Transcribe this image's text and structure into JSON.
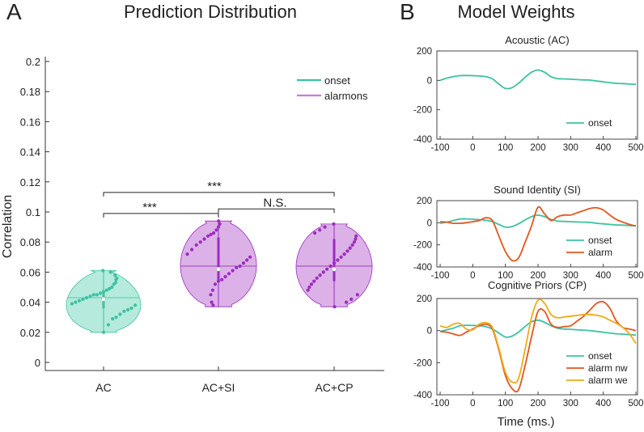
{
  "panel_a": {
    "letter": "A",
    "title": "Prediction Distribution",
    "ylabel": "Correlation",
    "y_ticks": [
      "0.2",
      "0.18",
      "0.16",
      "0.14",
      "0.12",
      "0.1",
      "0.08",
      "0.06",
      "0.04",
      "0.02",
      "0"
    ],
    "categories": [
      "AC",
      "AC+SI",
      "AC+CP"
    ],
    "legend": [
      {
        "label": "onset",
        "color": "#3cc2a0"
      },
      {
        "label": "alarmons",
        "color": "#c879dc"
      }
    ],
    "sig": [
      {
        "label": "***"
      },
      {
        "label": "***"
      },
      {
        "label": "N.S."
      }
    ]
  },
  "panel_b": {
    "letter": "B",
    "title": "Model Weights",
    "xlabel": "Time (ms.)",
    "x_ticks": [
      "-100",
      "0",
      "100",
      "200",
      "300",
      "400",
      "500"
    ],
    "y_ticks": [
      "200",
      "0",
      "-200",
      "-400"
    ],
    "subplots": [
      {
        "title": "Acoustic (AC)",
        "legend": [
          "onset"
        ]
      },
      {
        "title": "Sound Identity (SI)",
        "legend": [
          "onset",
          "alarm"
        ]
      },
      {
        "title": "Cognitive Priors (CP)",
        "legend": [
          "onset",
          "alarm nw",
          "alarm we"
        ]
      }
    ]
  },
  "chart_data": [
    {
      "type": "violin",
      "title": "Prediction Distribution",
      "xlabel": "",
      "ylabel": "Correlation",
      "ylim": [
        -0.005,
        0.205
      ],
      "categories": [
        "AC",
        "AC+SI",
        "AC+CP"
      ],
      "groups": [
        {
          "name": "AC",
          "series": "onset",
          "color": "#3cc2a0",
          "fill": "#a8e6d6",
          "median": 0.042,
          "q1": 0.036,
          "q3": 0.047,
          "min": 0.02,
          "max": 0.061,
          "points": [
            0.061,
            0.06,
            0.058,
            0.056,
            0.055,
            0.053,
            0.052,
            0.05,
            0.049,
            0.048,
            0.047,
            0.046,
            0.045,
            0.045,
            0.044,
            0.043,
            0.042,
            0.041,
            0.04,
            0.039,
            0.038,
            0.036,
            0.035,
            0.034,
            0.032,
            0.03,
            0.029,
            0.025,
            0.02
          ]
        },
        {
          "name": "AC+SI",
          "series": "alarmons",
          "color": "#9b2cc0",
          "fill": "#d6a3e3",
          "median": 0.062,
          "mean": 0.065,
          "q1": 0.054,
          "q3": 0.083,
          "min": 0.037,
          "max": 0.094,
          "points": [
            0.094,
            0.092,
            0.09,
            0.088,
            0.086,
            0.085,
            0.084,
            0.082,
            0.08,
            0.078,
            0.075,
            0.072,
            0.07,
            0.068,
            0.066,
            0.064,
            0.063,
            0.061,
            0.059,
            0.057,
            0.055,
            0.054,
            0.052,
            0.048,
            0.045,
            0.04,
            0.038
          ]
        },
        {
          "name": "AC+CP",
          "series": "alarmons",
          "color": "#9b2cc0",
          "fill": "#d6a3e3",
          "median": 0.062,
          "mean": 0.065,
          "q1": 0.054,
          "q3": 0.082,
          "min": 0.037,
          "max": 0.092,
          "points": [
            0.092,
            0.09,
            0.088,
            0.086,
            0.084,
            0.082,
            0.08,
            0.078,
            0.076,
            0.074,
            0.072,
            0.07,
            0.068,
            0.066,
            0.064,
            0.062,
            0.06,
            0.058,
            0.056,
            0.054,
            0.052,
            0.05,
            0.048,
            0.045,
            0.042,
            0.04,
            0.037
          ]
        }
      ],
      "comparisons": [
        {
          "pair": [
            "AC",
            "AC+SI"
          ],
          "label": "***",
          "y": 0.099
        },
        {
          "pair": [
            "AC",
            "AC+CP"
          ],
          "label": "***",
          "y": 0.113
        },
        {
          "pair": [
            "AC+SI",
            "AC+CP"
          ],
          "label": "N.S.",
          "y": 0.102
        }
      ],
      "legend": [
        "onset",
        "alarmons"
      ]
    },
    {
      "type": "line",
      "title": "Acoustic (AC)",
      "xlim": [
        -100,
        500
      ],
      "ylim": [
        -400,
        200
      ],
      "series": [
        {
          "name": "onset",
          "color": "#3cc2a0",
          "x": [
            -100,
            -80,
            -60,
            -40,
            -20,
            0,
            20,
            40,
            60,
            80,
            100,
            120,
            140,
            160,
            180,
            200,
            220,
            240,
            260,
            280,
            300,
            320,
            340,
            360,
            380,
            400,
            420,
            440,
            460,
            480,
            500
          ],
          "y": [
            0,
            15,
            25,
            32,
            33,
            32,
            30,
            25,
            10,
            -25,
            -55,
            -50,
            -20,
            20,
            55,
            70,
            55,
            25,
            12,
            10,
            8,
            5,
            3,
            2,
            -5,
            -10,
            -15,
            -20,
            -22,
            -25,
            -27
          ]
        }
      ]
    },
    {
      "type": "line",
      "title": "Sound Identity (SI)",
      "xlim": [
        -100,
        500
      ],
      "ylim": [
        -400,
        200
      ],
      "series": [
        {
          "name": "onset",
          "color": "#3cc2a0",
          "x": [
            -100,
            -80,
            -60,
            -40,
            -20,
            0,
            20,
            40,
            60,
            80,
            100,
            120,
            140,
            160,
            180,
            200,
            220,
            240,
            260,
            280,
            300,
            320,
            340,
            360,
            380,
            400,
            420,
            440,
            460,
            480,
            500
          ],
          "y": [
            -5,
            5,
            20,
            33,
            35,
            32,
            28,
            22,
            10,
            -15,
            -40,
            -35,
            -10,
            25,
            55,
            68,
            55,
            30,
            15,
            12,
            10,
            7,
            5,
            3,
            -5,
            -10,
            -15,
            -20,
            -22,
            -25,
            -28
          ]
        },
        {
          "name": "alarm",
          "color": "#e3561e",
          "x": [
            -100,
            -80,
            -60,
            -40,
            -20,
            0,
            20,
            40,
            60,
            80,
            100,
            120,
            140,
            160,
            180,
            200,
            220,
            240,
            260,
            280,
            300,
            320,
            340,
            360,
            380,
            400,
            420,
            440,
            460,
            480,
            500
          ],
          "y": [
            10,
            5,
            -5,
            -5,
            0,
            10,
            20,
            45,
            20,
            -120,
            -260,
            -340,
            -320,
            -180,
            -30,
            140,
            80,
            20,
            55,
            70,
            70,
            90,
            110,
            130,
            135,
            115,
            70,
            30,
            5,
            -15,
            -30
          ]
        }
      ]
    },
    {
      "type": "line",
      "title": "Cognitive Priors (CP)",
      "xlim": [
        -100,
        500
      ],
      "ylim": [
        -400,
        200
      ],
      "series": [
        {
          "name": "onset",
          "color": "#3cc2a0",
          "x": [
            -100,
            -80,
            -60,
            -40,
            -20,
            0,
            20,
            40,
            60,
            80,
            100,
            120,
            140,
            160,
            180,
            200,
            220,
            240,
            260,
            280,
            300,
            320,
            340,
            360,
            380,
            400,
            420,
            440,
            460,
            480,
            500
          ],
          "y": [
            -5,
            5,
            15,
            30,
            33,
            32,
            30,
            25,
            10,
            -15,
            -40,
            -35,
            -10,
            25,
            55,
            65,
            52,
            30,
            15,
            10,
            8,
            5,
            3,
            0,
            -5,
            -10,
            -15,
            -20,
            -22,
            -25,
            -28
          ]
        },
        {
          "name": "alarm nw",
          "color": "#e3561e",
          "x": [
            -100,
            -80,
            -60,
            -40,
            -20,
            0,
            20,
            40,
            60,
            80,
            100,
            120,
            140,
            160,
            180,
            200,
            220,
            240,
            260,
            280,
            300,
            320,
            340,
            360,
            380,
            400,
            420,
            440,
            460,
            480,
            500
          ],
          "y": [
            -5,
            -10,
            -20,
            -30,
            -10,
            10,
            30,
            40,
            10,
            -120,
            -280,
            -360,
            -370,
            -220,
            -40,
            120,
            120,
            40,
            20,
            25,
            30,
            60,
            90,
            130,
            170,
            180,
            140,
            60,
            20,
            10,
            0
          ]
        },
        {
          "name": "alarm we",
          "color": "#f0aa18",
          "x": [
            -100,
            -80,
            -60,
            -40,
            -20,
            0,
            20,
            40,
            60,
            80,
            100,
            120,
            140,
            160,
            180,
            200,
            220,
            240,
            260,
            280,
            300,
            320,
            340,
            360,
            380,
            400,
            420,
            440,
            460,
            480,
            500
          ],
          "y": [
            30,
            20,
            40,
            45,
            10,
            5,
            40,
            50,
            20,
            -110,
            -260,
            -320,
            -300,
            -120,
            80,
            190,
            170,
            100,
            80,
            85,
            90,
            95,
            100,
            100,
            95,
            85,
            65,
            45,
            20,
            -20,
            -80
          ]
        }
      ],
      "xlabel": "Time (ms.)"
    }
  ]
}
